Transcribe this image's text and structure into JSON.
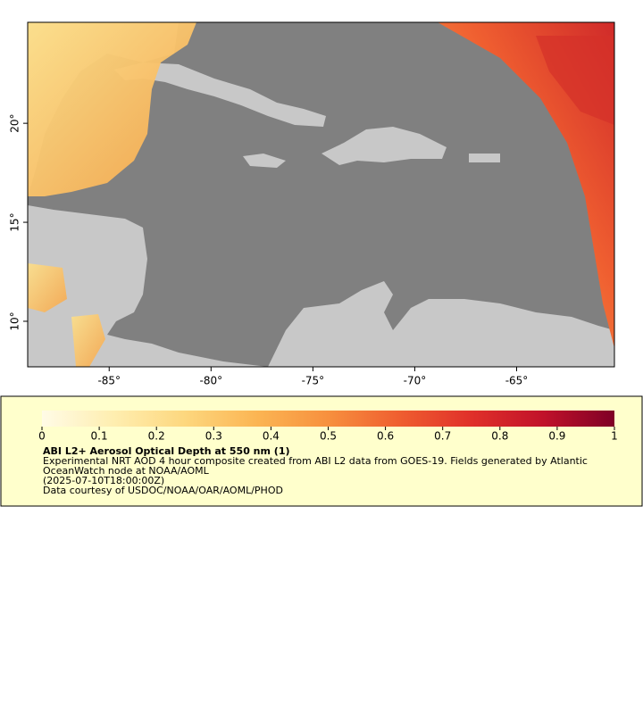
{
  "map": {
    "lonlim": [
      -89,
      -60.2
    ],
    "latlim": [
      7.7,
      25.1
    ],
    "lonticks": [
      {
        "value": -85,
        "label": "-85°"
      },
      {
        "value": -80,
        "label": "-80°"
      },
      {
        "value": -75,
        "label": "-75°"
      },
      {
        "value": -70,
        "label": "-70°"
      },
      {
        "value": -65,
        "label": "-65°"
      }
    ],
    "latticks": [
      {
        "value": 10,
        "label": "10°"
      },
      {
        "value": 15,
        "label": "15°"
      },
      {
        "value": 20,
        "label": "20°"
      }
    ]
  },
  "colorbar": {
    "range": [
      0,
      1
    ],
    "ticks": [
      0,
      0.1,
      0.2,
      0.3,
      0.4,
      0.5,
      0.6,
      0.7,
      0.8,
      0.9,
      1
    ],
    "colormap": [
      "#fffbe6",
      "#feeeb0",
      "#fdd77e",
      "#fbb553",
      "#f7903e",
      "#ef5e30",
      "#e0302a",
      "#c1122a",
      "#7f0026"
    ]
  },
  "legend": {
    "title": "ABI L2+ Aerosol Optical Depth at 550 nm (1)",
    "description": "Experimental NRT AOD 4 hour composite created from ABI L2 data from GOES-19. Fields generated by Atlantic OceanWatch node at NOAA/AOML",
    "time": "(2025-07-10T18:00:00Z)",
    "credit": "Data courtesy of USDOC/NOAA/OAR/AOML/PHOD"
  }
}
